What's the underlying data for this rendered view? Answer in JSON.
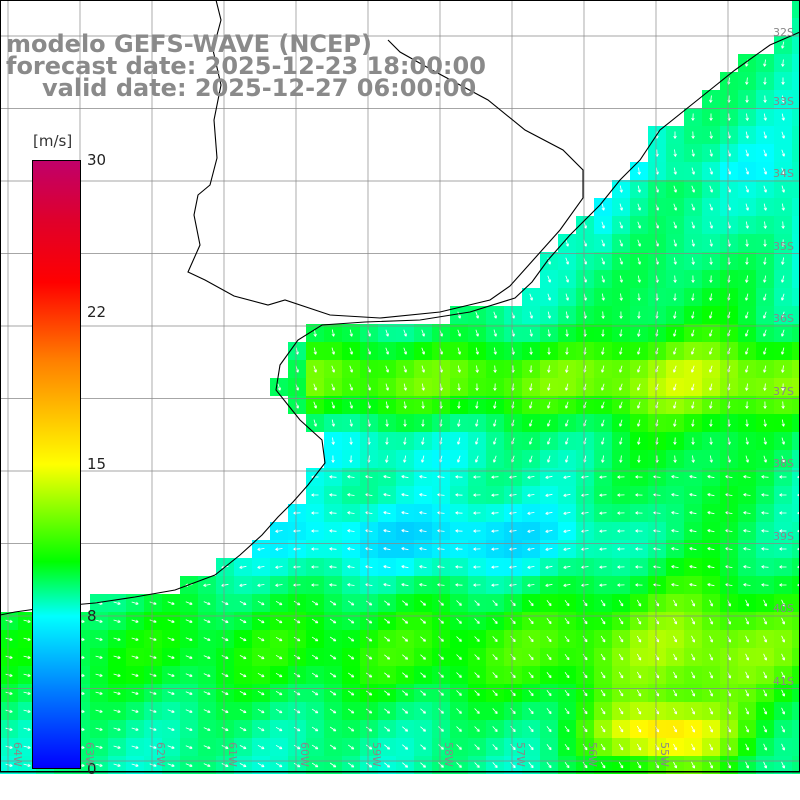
{
  "titles": {
    "line1": "modelo GEFS-WAVE (NCEP)",
    "line2": "forecast date: 2025-12-23 18:00:00",
    "line3": "valid date: 2025-12-27 06:00:00"
  },
  "colorbar": {
    "unit": "[m/s]",
    "ticks": [
      "30",
      "22",
      "15",
      "8",
      "0"
    ]
  },
  "lat_labels": [
    "32S",
    "33S",
    "34S",
    "35S",
    "36S",
    "37S",
    "38S",
    "39S",
    "40S",
    "41S"
  ],
  "lon_labels": [
    "64W",
    "63W",
    "62W",
    "61W",
    "60W",
    "59W",
    "58W",
    "57W",
    "56W",
    "55W"
  ],
  "colors": {
    "land": "#ffffff",
    "grid": "#888888",
    "coast": "#000000",
    "arrows": "#ffffff"
  }
}
